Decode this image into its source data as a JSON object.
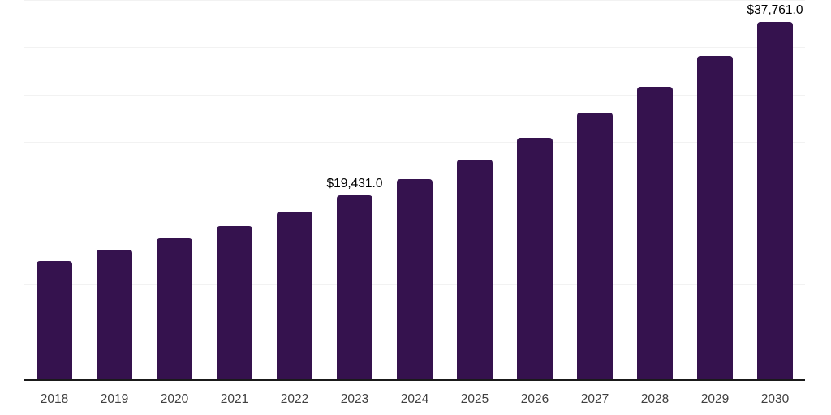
{
  "chart_data": {
    "type": "bar",
    "title": "",
    "xlabel": "",
    "ylabel": "",
    "categories": [
      "2018",
      "2019",
      "2020",
      "2021",
      "2022",
      "2023",
      "2024",
      "2025",
      "2026",
      "2027",
      "2028",
      "2029",
      "2030"
    ],
    "values": [
      12500,
      13700,
      14900,
      16200,
      17700,
      19431,
      21200,
      23250,
      25500,
      28150,
      30900,
      34150,
      37761
    ],
    "data_labels": {
      "2023": "$19,431.0",
      "2030": "$37,761.0"
    },
    "ylim": [
      0,
      40000
    ],
    "gridline_interval": 5000,
    "grid": "horizontal-only",
    "legend_position": "none",
    "colors": {
      "bar": "#35124e",
      "axis_line": "#1a1a1a",
      "gridline": "#f2f2f2",
      "tick_label": "#404040",
      "data_label": "#000000",
      "background": "#ffffff"
    }
  }
}
